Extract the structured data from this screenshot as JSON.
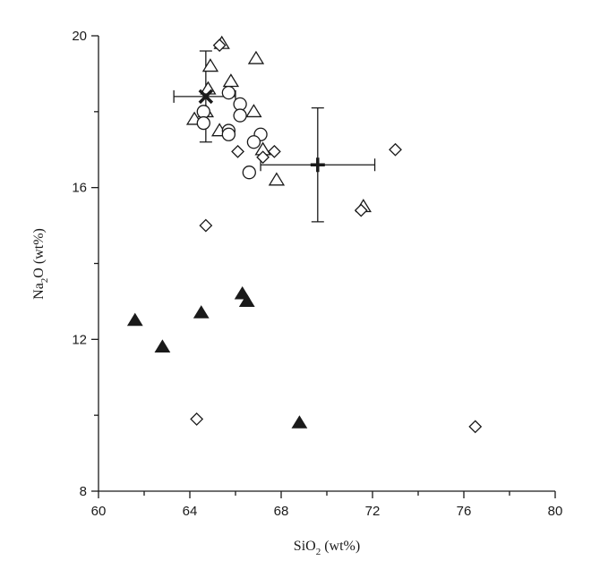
{
  "chart_data": {
    "type": "scatter",
    "xlabel_main": "SiO",
    "xlabel_sub": "2",
    "xlabel_unit": " (wt%)",
    "ylabel_main": "Na",
    "ylabel_sub": "2",
    "ylabel_unit": "O (wt%)",
    "xlim": [
      60,
      80
    ],
    "ylim": [
      8,
      20
    ],
    "x_ticks": [
      "60",
      "64",
      "68",
      "72",
      "76",
      "80"
    ],
    "y_ticks": [
      "8",
      "12",
      "16",
      "20"
    ],
    "grid": false,
    "series": [
      {
        "marker": "open-triangle",
        "points": [
          [
            65.4,
            19.8
          ],
          [
            66.9,
            19.4
          ],
          [
            64.9,
            19.2
          ],
          [
            65.8,
            18.8
          ],
          [
            64.8,
            18.6
          ],
          [
            64.2,
            17.8
          ],
          [
            64.7,
            18.0
          ],
          [
            65.3,
            17.5
          ],
          [
            66.8,
            18.0
          ],
          [
            67.2,
            17.0
          ],
          [
            67.8,
            16.2
          ],
          [
            71.6,
            15.5
          ]
        ]
      },
      {
        "marker": "open-circle",
        "points": [
          [
            65.7,
            18.5
          ],
          [
            66.2,
            18.2
          ],
          [
            64.6,
            18.0
          ],
          [
            66.2,
            17.9
          ],
          [
            64.6,
            17.7
          ],
          [
            65.7,
            17.5
          ],
          [
            65.7,
            17.4
          ],
          [
            67.1,
            17.4
          ],
          [
            66.8,
            17.2
          ],
          [
            66.6,
            16.4
          ]
        ]
      },
      {
        "marker": "open-diamond",
        "points": [
          [
            65.3,
            19.75
          ],
          [
            66.1,
            16.95
          ],
          [
            67.2,
            16.8
          ],
          [
            67.7,
            16.95
          ],
          [
            73.0,
            17.0
          ],
          [
            71.5,
            15.4
          ],
          [
            64.7,
            15.0
          ],
          [
            64.3,
            9.9
          ],
          [
            76.5,
            9.7
          ]
        ]
      },
      {
        "marker": "solid-triangle",
        "points": [
          [
            61.6,
            12.5
          ],
          [
            62.8,
            11.8
          ],
          [
            64.5,
            12.7
          ],
          [
            66.3,
            13.2
          ],
          [
            66.5,
            13.0
          ],
          [
            68.8,
            9.8
          ]
        ]
      },
      {
        "marker": "cross-mean",
        "points": [
          [
            64.7,
            18.4
          ]
        ],
        "x_err": [
          [
            63.3,
            66.0
          ]
        ],
        "y_err": [
          [
            17.2,
            19.6
          ]
        ]
      },
      {
        "marker": "plus-mean",
        "points": [
          [
            69.6,
            16.6
          ]
        ],
        "x_err": [
          [
            67.1,
            72.1
          ]
        ],
        "y_err": [
          [
            15.1,
            18.1
          ]
        ]
      }
    ]
  }
}
